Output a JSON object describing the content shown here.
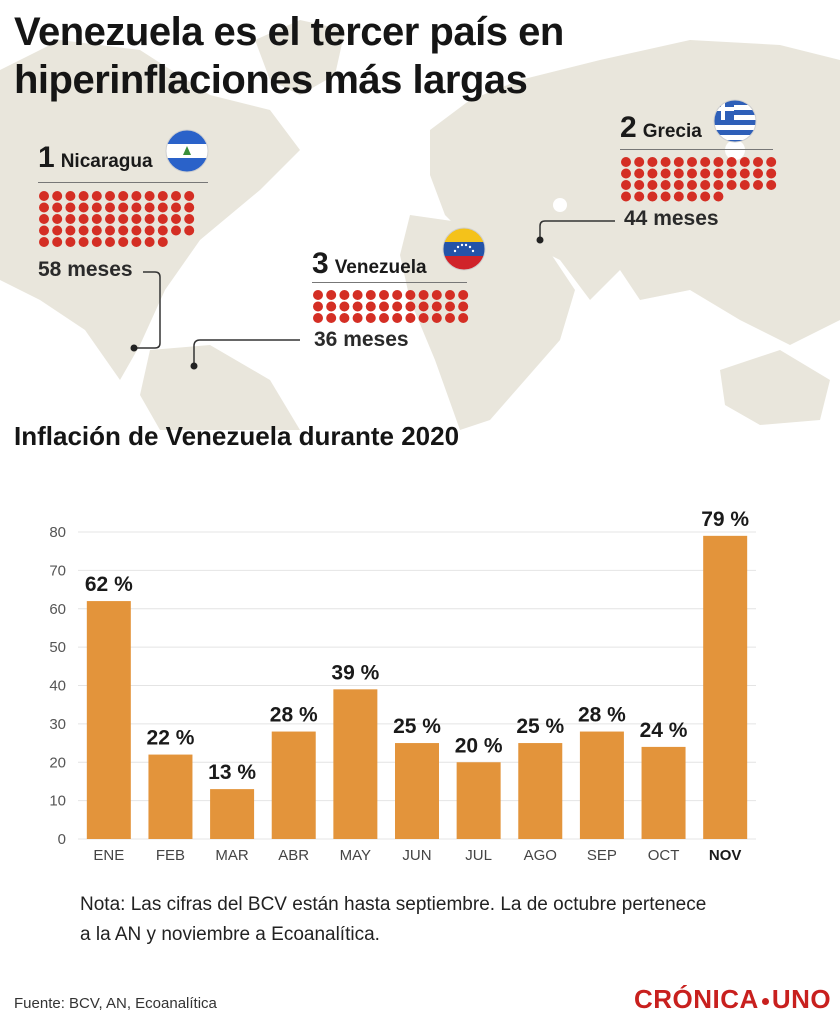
{
  "title_line1": "Venezuela es el tercer país en",
  "title_line2": "hiperinflaciones más largas",
  "ranking": [
    {
      "rank": "1",
      "country": "Nicaragua",
      "months_label": "58 meses",
      "months": 58
    },
    {
      "rank": "2",
      "country": "Grecia",
      "months_label": "44 meses",
      "months": 44
    },
    {
      "rank": "3",
      "country": "Venezuela",
      "months_label": "36 meses",
      "months": 36
    }
  ],
  "colors": {
    "bar": "#e3943b",
    "dot": "#d42e24",
    "map": "#e9e6dc",
    "gridline": "#e4e4e4",
    "logo": "#c8201e"
  },
  "flag_icons": [
    "nicaragua-flag-icon",
    "greece-flag-icon",
    "venezuela-flag-icon"
  ],
  "chart_data": {
    "type": "bar",
    "title": "Inflación de Venezuela durante 2020",
    "categories": [
      "ENE",
      "FEB",
      "MAR",
      "ABR",
      "MAY",
      "JUN",
      "JUL",
      "AGO",
      "SEP",
      "OCT",
      "NOV"
    ],
    "values": [
      62,
      22,
      13,
      28,
      39,
      25,
      20,
      25,
      28,
      24,
      79
    ],
    "data_labels": [
      "62 %",
      "22 %",
      "13 %",
      "28 %",
      "39 %",
      "25 %",
      "20 %",
      "25 %",
      "28 %",
      "24 %",
      "79 %"
    ],
    "highlighted_category": "NOV",
    "yticks": [
      0,
      10,
      20,
      30,
      40,
      50,
      60,
      70,
      80
    ],
    "ylim": [
      0,
      80
    ],
    "grid": true,
    "xlabel": "",
    "ylabel": ""
  },
  "note": "Nota: Las cifras del BCV están hasta septiembre. La de octubre pertenece a la AN y noviembre a Ecoanalítica.",
  "source": "Fuente: BCV, AN, Ecoanalítica",
  "logo": {
    "part1": "CRÓNICA",
    "part2": "UNO"
  }
}
